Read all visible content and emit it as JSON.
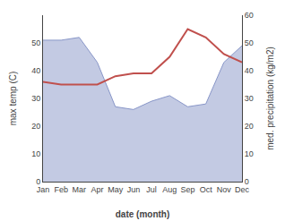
{
  "chart_data": {
    "type": "line",
    "xlabel": "date (month)",
    "ylabel": "max temp (C)",
    "y2label": "med. precipitation (kg/m2)",
    "categories": [
      "Jan",
      "Feb",
      "Mar",
      "Apr",
      "May",
      "Jun",
      "Jul",
      "Aug",
      "Sep",
      "Oct",
      "Nov",
      "Dec"
    ],
    "series": [
      {
        "type": "area",
        "color": "#8896c8",
        "values": [
          51,
          51,
          52,
          43,
          27,
          26,
          29,
          31,
          27,
          28,
          43,
          49
        ]
      },
      {
        "type": "line",
        "color": "#c0504d",
        "axis": "y2",
        "values": [
          36,
          35,
          35,
          35,
          38,
          39,
          39,
          45,
          55,
          52,
          46,
          43
        ]
      }
    ],
    "ylim": [
      0,
      60
    ],
    "yticks": [
      0,
      10,
      20,
      30,
      40,
      50
    ],
    "y2lim": [
      0,
      60
    ],
    "y2ticks": [
      0,
      10,
      20,
      30,
      40,
      50,
      60
    ],
    "grid": false
  }
}
